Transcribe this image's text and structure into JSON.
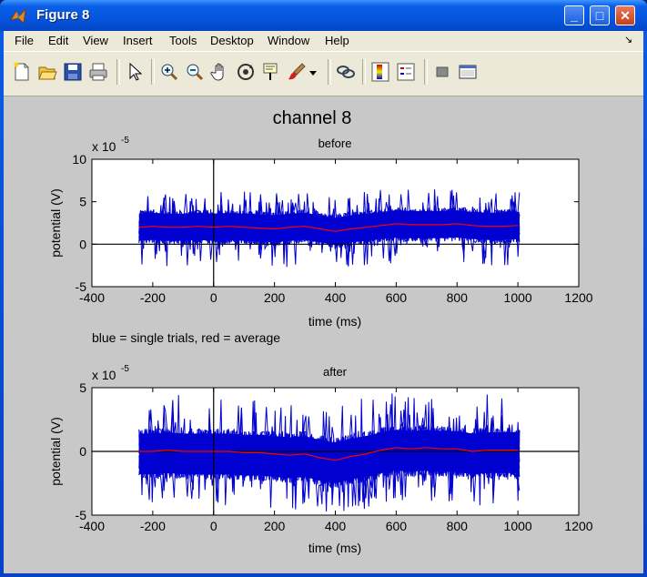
{
  "window": {
    "title": "Figure 8",
    "minimize": "_",
    "maximize": "□",
    "close": "✕"
  },
  "menu": [
    "File",
    "Edit",
    "View",
    "Insert",
    "Tools",
    "Desktop",
    "Window",
    "Help"
  ],
  "menu_end_glyph": "↘",
  "toolbar": [
    "new-figure-icon",
    "open-file-icon",
    "save-icon",
    "print-icon",
    "pointer-icon",
    "zoom-in-icon",
    "zoom-out-icon",
    "pan-hand-icon",
    "rotate-3d-icon",
    "data-cursor-icon",
    "brush-icon",
    "brush-dropdown-icon",
    "link-plot-icon",
    "colorbar-icon",
    "legend-icon",
    "hide-plot-tools-icon",
    "show-plot-tools-icon"
  ],
  "chart_data": [
    {
      "type": "line",
      "suptitle": "channel 8",
      "title": "before",
      "xlabel": "time (ms)",
      "ylabel": "potential (V)",
      "exponent_label": "x 10",
      "exponent": "-5",
      "xlim": [
        -400,
        1200
      ],
      "ylim": [
        -5,
        10
      ],
      "xticks": [
        -400,
        -200,
        0,
        200,
        400,
        600,
        800,
        1000,
        1200
      ],
      "yticks": [
        -5,
        0,
        5,
        10
      ],
      "ytick_labels": [
        "-5",
        "0",
        "5",
        "10"
      ],
      "x_range": [
        -245,
        1005
      ],
      "series": [
        {
          "legend_text": "blue = single trials",
          "color": "#0000d0",
          "band_upper": 4,
          "band_lower": 0,
          "spike_upper": 6.2,
          "spike_lower": -2.7
        },
        {
          "legend_text": "red = average",
          "color": "#ff0000",
          "x": [
            -245,
            -200,
            -150,
            -100,
            -50,
            0,
            50,
            100,
            150,
            200,
            250,
            300,
            350,
            400,
            450,
            500,
            550,
            600,
            650,
            700,
            750,
            800,
            850,
            900,
            950,
            1000
          ],
          "values": [
            2.0,
            2.1,
            2.0,
            2.0,
            2.1,
            2.0,
            2.1,
            2.0,
            1.9,
            1.8,
            2.0,
            2.1,
            1.8,
            1.5,
            1.8,
            2.0,
            2.2,
            2.4,
            2.3,
            2.3,
            2.3,
            2.4,
            2.2,
            2.1,
            2.1,
            2.2
          ]
        }
      ],
      "annotation": "blue = single trials, red = average",
      "reference_lines": {
        "x": 0,
        "y": 0
      }
    },
    {
      "type": "line",
      "title": "after",
      "xlabel": "time (ms)",
      "ylabel": "potential (V)",
      "exponent_label": "x 10",
      "exponent": "-5",
      "xlim": [
        -400,
        1200
      ],
      "ylim": [
        -5,
        5
      ],
      "xticks": [
        -400,
        -200,
        0,
        200,
        400,
        600,
        800,
        1000,
        1200
      ],
      "yticks": [
        -5,
        0,
        5
      ],
      "ytick_labels": [
        "-5",
        "0",
        "5"
      ],
      "x_range": [
        -245,
        1005
      ],
      "series": [
        {
          "color": "#0000d0",
          "band_upper": 1.8,
          "band_lower": -2.2,
          "spike_upper": 4.4,
          "spike_lower": -4.3
        },
        {
          "color": "#ff0000",
          "x": [
            -245,
            -200,
            -150,
            -100,
            -50,
            0,
            50,
            100,
            150,
            200,
            250,
            300,
            350,
            400,
            450,
            500,
            550,
            600,
            650,
            700,
            750,
            800,
            850,
            900,
            950,
            1000
          ],
          "values": [
            0.0,
            0.0,
            0.1,
            0.0,
            0.0,
            0.0,
            0.0,
            -0.1,
            -0.1,
            -0.2,
            -0.3,
            -0.2,
            -0.5,
            -0.7,
            -0.4,
            -0.2,
            0.1,
            0.3,
            0.2,
            0.3,
            0.2,
            0.2,
            0.0,
            0.1,
            0.1,
            0.1
          ]
        }
      ],
      "reference_lines": {
        "x": 0,
        "y": 0
      }
    }
  ]
}
